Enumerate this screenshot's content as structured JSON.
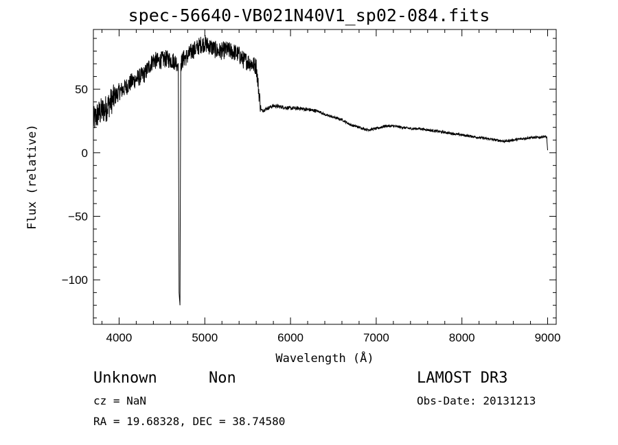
{
  "chart_data": {
    "type": "line",
    "title": "spec-56640-VB021N40V1_sp02-084.fits",
    "xlabel": "Wavelength (Å)",
    "ylabel": "Flux (relative)",
    "xlim": [
      3700,
      9100
    ],
    "ylim": [
      -135,
      97
    ],
    "xticks": [
      4000,
      5000,
      6000,
      7000,
      8000,
      9000
    ],
    "yticks": [
      -100,
      -50,
      0,
      50
    ],
    "series": [
      {
        "name": "spectrum",
        "anchors": [
          [
            3700,
            25
          ],
          [
            3750,
            30
          ],
          [
            3800,
            33
          ],
          [
            3850,
            35
          ],
          [
            3900,
            40
          ],
          [
            3950,
            44
          ],
          [
            4000,
            48
          ],
          [
            4050,
            50
          ],
          [
            4100,
            53
          ],
          [
            4150,
            56
          ],
          [
            4200,
            58
          ],
          [
            4250,
            60
          ],
          [
            4300,
            62
          ],
          [
            4350,
            68
          ],
          [
            4400,
            73
          ],
          [
            4450,
            72
          ],
          [
            4500,
            73
          ],
          [
            4550,
            74
          ],
          [
            4600,
            73
          ],
          [
            4650,
            72
          ],
          [
            4690,
            70
          ],
          [
            4700,
            -110
          ],
          [
            4710,
            -120
          ],
          [
            4720,
            70
          ],
          [
            4750,
            74
          ],
          [
            4800,
            76
          ],
          [
            4850,
            80
          ],
          [
            4900,
            82
          ],
          [
            4950,
            85
          ],
          [
            5000,
            86
          ],
          [
            5050,
            84
          ],
          [
            5100,
            82
          ],
          [
            5150,
            80
          ],
          [
            5200,
            80
          ],
          [
            5250,
            81
          ],
          [
            5300,
            80
          ],
          [
            5350,
            79
          ],
          [
            5400,
            77
          ],
          [
            5450,
            73
          ],
          [
            5500,
            72
          ],
          [
            5550,
            70
          ],
          [
            5600,
            68
          ],
          [
            5620,
            55
          ],
          [
            5640,
            42
          ],
          [
            5660,
            33
          ],
          [
            5700,
            34
          ],
          [
            5800,
            37
          ],
          [
            5900,
            36
          ],
          [
            6000,
            35
          ],
          [
            6100,
            35
          ],
          [
            6200,
            34
          ],
          [
            6300,
            33
          ],
          [
            6350,
            32
          ],
          [
            6400,
            30
          ],
          [
            6500,
            28
          ],
          [
            6600,
            26
          ],
          [
            6700,
            22
          ],
          [
            6800,
            20
          ],
          [
            6900,
            18
          ],
          [
            7000,
            19
          ],
          [
            7100,
            21
          ],
          [
            7200,
            21
          ],
          [
            7300,
            20
          ],
          [
            7400,
            19
          ],
          [
            7500,
            19
          ],
          [
            7600,
            18
          ],
          [
            7700,
            17
          ],
          [
            7800,
            16
          ],
          [
            7900,
            15
          ],
          [
            8000,
            14
          ],
          [
            8100,
            13
          ],
          [
            8200,
            12
          ],
          [
            8300,
            11
          ],
          [
            8400,
            10
          ],
          [
            8500,
            9
          ],
          [
            8600,
            10
          ],
          [
            8700,
            11
          ],
          [
            8800,
            12
          ],
          [
            8900,
            12
          ],
          [
            8960,
            13
          ],
          [
            8990,
            12
          ],
          [
            9000,
            1
          ]
        ]
      }
    ]
  },
  "footer": {
    "object_class": "Unknown",
    "object_subclass": "Non",
    "cz": "cz = NaN",
    "coords": "RA =  19.68328, DEC =  38.74580",
    "survey": "LAMOST DR3",
    "obs_date": "Obs-Date: 20131213"
  }
}
